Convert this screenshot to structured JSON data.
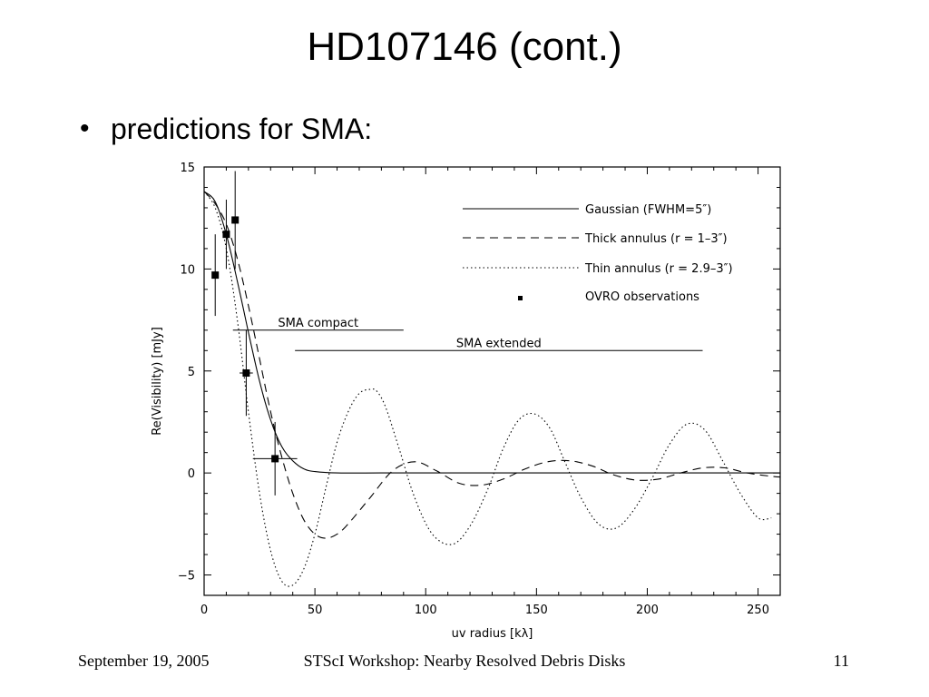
{
  "slide": {
    "title": "HD107146 (cont.)",
    "bullet": "predictions for SMA:"
  },
  "footer": {
    "date": "September 19, 2005",
    "center": "STScI Workshop: Nearby Resolved Debris Disks",
    "page": "11"
  },
  "chart_data": {
    "type": "line",
    "xlabel": "uv radius  [kλ]",
    "ylabel": "Re(Visibility)  [mJy]",
    "xlim": [
      0,
      260
    ],
    "ylim": [
      -6,
      15
    ],
    "xticks": [
      0,
      50,
      100,
      150,
      200,
      250
    ],
    "yticks": [
      -5,
      0,
      5,
      10,
      15
    ],
    "grid": false,
    "legend_position": "top-right",
    "series": [
      {
        "name": "Gaussian  (FWHM=5″)",
        "style": "solid",
        "x": [
          0,
          5,
          10,
          15,
          20,
          25,
          30,
          35,
          40,
          45,
          50,
          60,
          80,
          100,
          150,
          200,
          260
        ],
        "y": [
          13.8,
          13.3,
          11.7,
          9.4,
          6.9,
          4.5,
          2.6,
          1.3,
          0.6,
          0.2,
          0.07,
          0,
          0,
          0,
          0,
          0,
          0
        ]
      },
      {
        "name": "Thick  annulus  (r = 1–3″)",
        "style": "dashed",
        "x": [
          0,
          5,
          10,
          15,
          20,
          25,
          30,
          35,
          40,
          45,
          50,
          55,
          60,
          65,
          75,
          85,
          95,
          105,
          115,
          125,
          135,
          145,
          155,
          165,
          175,
          185,
          195,
          205,
          215,
          225,
          235,
          245,
          255,
          260
        ],
        "y": [
          13.8,
          13.2,
          12.2,
          10.5,
          8.2,
          5.6,
          3.0,
          0.8,
          -1.0,
          -2.3,
          -3.0,
          -3.2,
          -3.0,
          -2.5,
          -1.2,
          0.1,
          0.55,
          0.1,
          -0.5,
          -0.6,
          -0.3,
          0.2,
          0.55,
          0.6,
          0.35,
          -0.1,
          -0.35,
          -0.3,
          0.0,
          0.25,
          0.25,
          0.0,
          -0.15,
          -0.2
        ]
      },
      {
        "name": "Thin   annulus  (r = 2.9–3″)",
        "style": "dotted",
        "x": [
          0,
          5,
          10,
          15,
          20,
          25,
          30,
          35,
          40,
          45,
          50,
          55,
          60,
          65,
          70,
          75,
          78,
          82,
          88,
          95,
          103,
          112,
          120,
          128,
          135,
          142,
          149,
          156,
          163,
          170,
          178,
          186,
          194,
          202,
          210,
          218,
          226,
          234,
          242,
          250,
          256
        ],
        "y": [
          13.8,
          13.0,
          11.0,
          7.5,
          3.0,
          -1.0,
          -3.8,
          -5.3,
          -5.5,
          -4.7,
          -3.0,
          -0.7,
          1.5,
          3.0,
          3.9,
          4.1,
          4.0,
          3.2,
          1.2,
          -1.2,
          -3.0,
          -3.5,
          -2.6,
          -0.8,
          1.2,
          2.6,
          2.9,
          2.2,
          0.5,
          -1.2,
          -2.5,
          -2.7,
          -1.8,
          -0.3,
          1.4,
          2.4,
          2.1,
          0.6,
          -1.0,
          -2.2,
          -2.2
        ]
      }
    ],
    "observations": {
      "name": "OVRO observations",
      "points": [
        {
          "x": 5,
          "y": 9.7,
          "xerr": 0,
          "yerr": 2.0
        },
        {
          "x": 10,
          "y": 11.7,
          "xerr": 0,
          "yerr": 1.7
        },
        {
          "x": 14,
          "y": 12.4,
          "xerr": 0,
          "yerr": 2.4
        },
        {
          "x": 19,
          "y": 4.9,
          "xerr": 3,
          "yerr": 2.1
        },
        {
          "x": 32,
          "y": 0.7,
          "xerr": 10,
          "yerr": 1.8
        }
      ]
    },
    "ranges": [
      {
        "name": "SMA compact",
        "x": [
          13,
          90
        ],
        "y": 7.0
      },
      {
        "name": "SMA extended",
        "x": [
          41,
          225
        ],
        "y": 6.0
      }
    ]
  }
}
